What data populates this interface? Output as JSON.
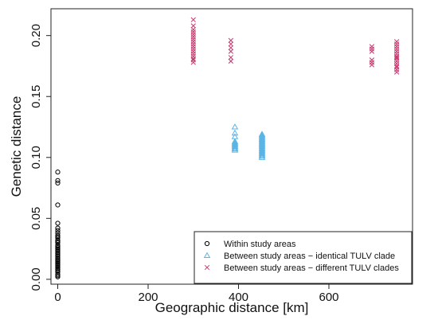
{
  "chart_data": {
    "type": "scatter",
    "xlabel": "Geographic distance [km]",
    "ylabel": "Genetic distance",
    "xlim": [
      -15,
      785
    ],
    "ylim": [
      -0.004,
      0.222
    ],
    "xticks": [
      0,
      200,
      400,
      600
    ],
    "xtick_labels": [
      "0",
      "200",
      "400",
      "600"
    ],
    "yticks": [
      0.0,
      0.05,
      0.1,
      0.15,
      0.2
    ],
    "ytick_labels": [
      "0.00",
      "0.05",
      "0.10",
      "0.15",
      "0.20"
    ],
    "grid": false,
    "legend_position": "bottom-right",
    "series": [
      {
        "name": "Within study areas",
        "marker": "circle",
        "color": "#000000",
        "x": [
          0,
          0,
          0,
          0,
          0,
          0,
          0,
          0,
          0,
          0,
          0,
          0,
          0,
          0,
          0,
          0,
          0,
          0,
          0,
          0,
          0,
          0,
          0,
          0,
          0,
          0,
          0,
          0,
          0,
          0,
          0,
          0,
          0,
          0,
          0,
          0,
          0,
          0,
          0,
          0
        ],
        "y": [
          0.002,
          0.004,
          0.006,
          0.008,
          0.01,
          0.012,
          0.014,
          0.016,
          0.018,
          0.02,
          0.022,
          0.024,
          0.026,
          0.028,
          0.03,
          0.032,
          0.034,
          0.036,
          0.038,
          0.04,
          0.042,
          0.046,
          0.061,
          0.079,
          0.081,
          0.088,
          0.003,
          0.007,
          0.011,
          0.015,
          0.019,
          0.023,
          0.027,
          0.031,
          0.035,
          0.009,
          0.013,
          0.017,
          0.021,
          0.025
        ]
      },
      {
        "name": "Between study areas − identical TULV clade",
        "marker": "triangle",
        "color": "#5ab4e6",
        "x": [
          392,
          392,
          392,
          392,
          392,
          392,
          392,
          392,
          392,
          392,
          392,
          452,
          452,
          452,
          452,
          452,
          452,
          452,
          452,
          452,
          452,
          452,
          452,
          452,
          452,
          452,
          452,
          452,
          452,
          452,
          452
        ],
        "y": [
          0.106,
          0.107,
          0.108,
          0.109,
          0.11,
          0.111,
          0.112,
          0.113,
          0.117,
          0.12,
          0.125,
          0.1,
          0.101,
          0.102,
          0.103,
          0.104,
          0.105,
          0.106,
          0.107,
          0.108,
          0.109,
          0.11,
          0.111,
          0.112,
          0.113,
          0.114,
          0.115,
          0.116,
          0.117,
          0.118,
          0.119
        ]
      },
      {
        "name": "Between study areas − different TULV clades",
        "marker": "cross",
        "color": "#c8386e",
        "x": [
          300,
          300,
          300,
          300,
          300,
          300,
          300,
          300,
          300,
          300,
          300,
          300,
          300,
          300,
          300,
          300,
          300,
          383,
          383,
          383,
          383,
          383,
          383,
          695,
          695,
          695,
          695,
          695,
          695,
          750,
          750,
          750,
          750,
          750,
          750,
          750,
          750,
          750,
          750,
          750,
          750,
          750,
          750,
          750
        ],
        "y": [
          0.178,
          0.18,
          0.181,
          0.183,
          0.185,
          0.187,
          0.189,
          0.191,
          0.193,
          0.195,
          0.197,
          0.199,
          0.201,
          0.203,
          0.205,
          0.208,
          0.213,
          0.179,
          0.182,
          0.187,
          0.19,
          0.193,
          0.196,
          0.176,
          0.178,
          0.18,
          0.187,
          0.189,
          0.191,
          0.17,
          0.172,
          0.175,
          0.177,
          0.179,
          0.181,
          0.183,
          0.185,
          0.187,
          0.189,
          0.191,
          0.193,
          0.195,
          0.174,
          0.182
        ]
      }
    ]
  }
}
